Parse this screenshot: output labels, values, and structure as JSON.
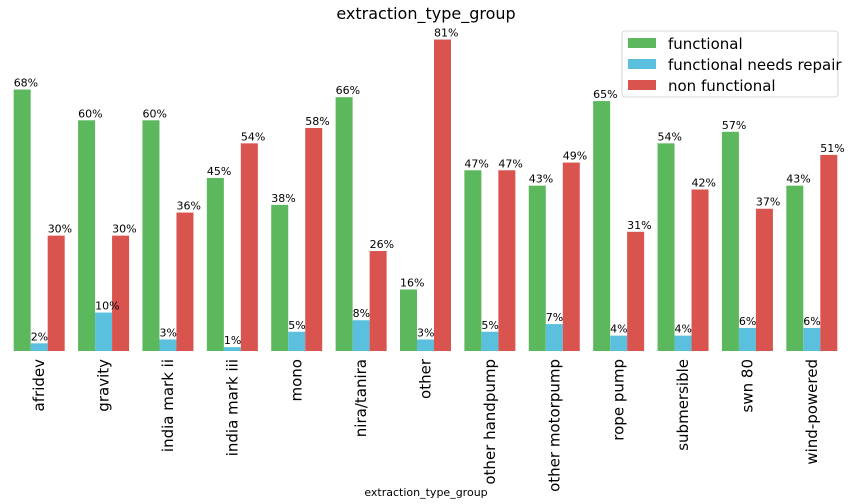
{
  "chart_data": {
    "type": "bar",
    "title": "extraction_type_group",
    "xlabel": "extraction_type_group",
    "ylabel": "",
    "ylim": [
      0,
      84
    ],
    "grid": false,
    "legend_position": "top-right",
    "categories": [
      "afridev",
      "gravity",
      "india mark ii",
      "india mark iii",
      "mono",
      "nira/tanira",
      "other",
      "other handpump",
      "other motorpump",
      "rope pump",
      "submersible",
      "swn 80",
      "wind-powered"
    ],
    "series": [
      {
        "name": "functional",
        "color": "#5cb85c",
        "values": [
          68,
          60,
          60,
          45,
          38,
          66,
          16,
          47,
          43,
          65,
          54,
          57,
          43
        ]
      },
      {
        "name": "functional needs repair",
        "color": "#5bc0de",
        "values": [
          2,
          10,
          3,
          1,
          5,
          8,
          3,
          5,
          7,
          4,
          4,
          6,
          6
        ]
      },
      {
        "name": "non functional",
        "color": "#d9534f",
        "values": [
          30,
          30,
          36,
          54,
          58,
          26,
          81,
          47,
          49,
          31,
          42,
          37,
          51
        ]
      }
    ],
    "value_suffix": "%"
  }
}
